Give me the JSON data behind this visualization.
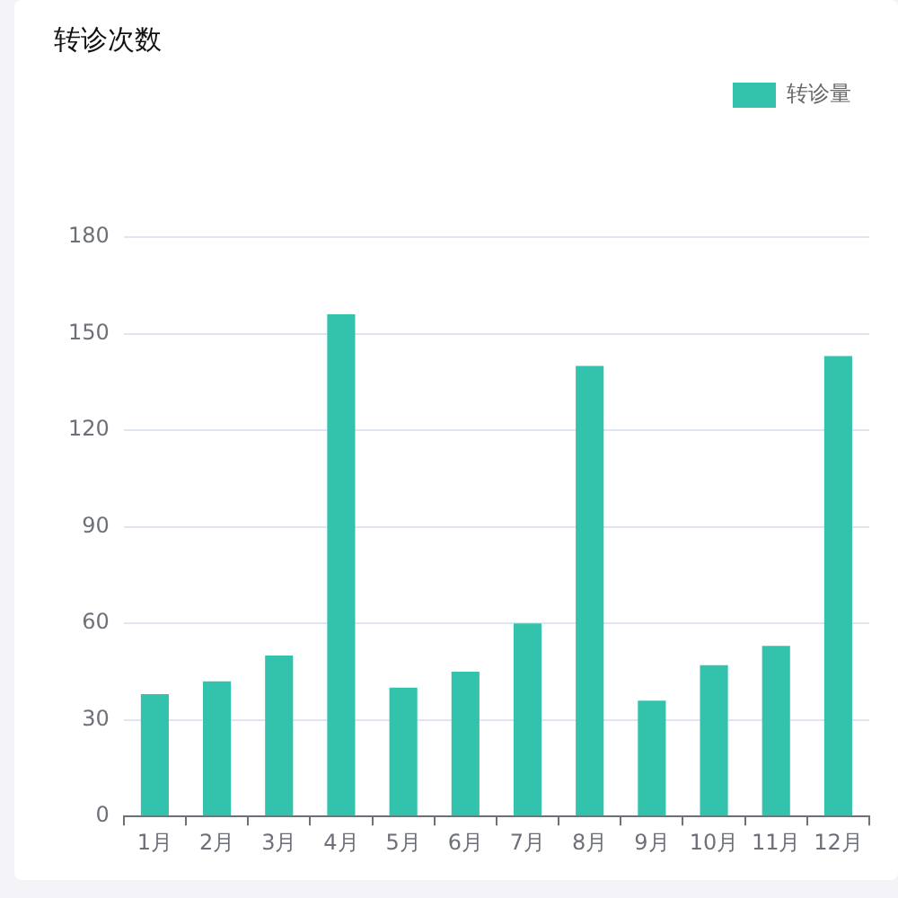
{
  "chart_data": {
    "type": "bar",
    "title": "转诊次数",
    "categories": [
      "1月",
      "2月",
      "3月",
      "4月",
      "5月",
      "6月",
      "7月",
      "8月",
      "9月",
      "10月",
      "11月",
      "12月"
    ],
    "series": [
      {
        "name": "转诊量",
        "color": "#33c3ad",
        "values": [
          38,
          42,
          50,
          156,
          40,
          45,
          60,
          140,
          36,
          47,
          53,
          143
        ]
      }
    ],
    "ylim": [
      0,
      180
    ],
    "yticks": [
      0,
      30,
      60,
      90,
      120,
      150,
      180
    ],
    "grid": "y",
    "legend": "top right"
  }
}
